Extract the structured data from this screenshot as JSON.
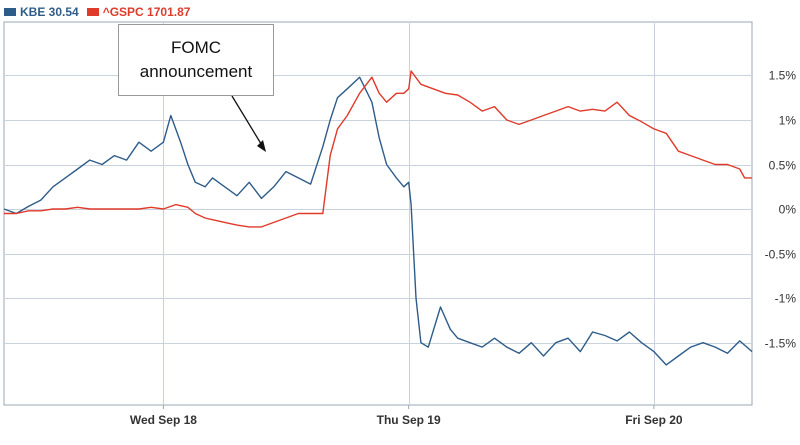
{
  "legend": {
    "kbe_label": "KBE 30.54",
    "gspc_label": "^GSPC 1701.87"
  },
  "annotation": {
    "line1": "FOMC",
    "line2": "announcement"
  },
  "colors": {
    "kbe": "#2e5c8a",
    "gspc": "#e03a2a",
    "grid": "#c8d3de",
    "axis": "#9aa7b4"
  },
  "chart_data": {
    "type": "line",
    "title": "",
    "xlabel": "",
    "ylabel": "",
    "grid": true,
    "legend_position": "top-left",
    "y_ticks": [
      {
        "value": 1.5,
        "label": "1.5%"
      },
      {
        "value": 1.0,
        "label": "1%"
      },
      {
        "value": 0.5,
        "label": "0.5%"
      },
      {
        "value": 0.0,
        "label": "0%"
      },
      {
        "value": -0.5,
        "label": "-0.5%"
      },
      {
        "value": -1.0,
        "label": "-1%"
      },
      {
        "value": -1.5,
        "label": "-1.5%"
      }
    ],
    "ylim": [
      -2.2,
      2.1
    ],
    "xlim": [
      0,
      3.05
    ],
    "x_ticks": [
      {
        "value": 0.65,
        "label": "Wed Sep 18"
      },
      {
        "value": 1.65,
        "label": "Thu Sep 19"
      },
      {
        "value": 2.65,
        "label": "Fri Sep 20"
      }
    ],
    "x_grid": [
      0.65,
      1.65,
      2.65
    ],
    "series": [
      {
        "name": "KBE 30.54",
        "color": "#2e5c8a",
        "x": [
          0.0,
          0.05,
          0.1,
          0.15,
          0.2,
          0.25,
          0.3,
          0.35,
          0.4,
          0.45,
          0.5,
          0.55,
          0.6,
          0.65,
          0.68,
          0.72,
          0.75,
          0.78,
          0.82,
          0.85,
          0.9,
          0.95,
          1.0,
          1.05,
          1.1,
          1.15,
          1.2,
          1.25,
          1.3,
          1.33,
          1.36,
          1.4,
          1.45,
          1.5,
          1.53,
          1.56,
          1.6,
          1.63,
          1.65,
          1.66,
          1.68,
          1.7,
          1.73,
          1.78,
          1.82,
          1.85,
          1.9,
          1.95,
          2.0,
          2.05,
          2.1,
          2.15,
          2.2,
          2.25,
          2.3,
          2.35,
          2.4,
          2.45,
          2.5,
          2.55,
          2.6,
          2.65,
          2.7,
          2.75,
          2.8,
          2.85,
          2.9,
          2.95,
          3.0,
          3.05
        ],
        "y": [
          0.0,
          -0.05,
          0.03,
          0.1,
          0.25,
          0.35,
          0.45,
          0.55,
          0.5,
          0.6,
          0.55,
          0.75,
          0.65,
          0.75,
          1.05,
          0.75,
          0.5,
          0.3,
          0.25,
          0.35,
          0.25,
          0.15,
          0.3,
          0.12,
          0.25,
          0.42,
          0.35,
          0.28,
          0.7,
          1.0,
          1.25,
          1.35,
          1.48,
          1.2,
          0.8,
          0.5,
          0.35,
          0.25,
          0.3,
          0.05,
          -1.0,
          -1.5,
          -1.55,
          -1.1,
          -1.35,
          -1.45,
          -1.5,
          -1.55,
          -1.45,
          -1.55,
          -1.62,
          -1.5,
          -1.65,
          -1.5,
          -1.45,
          -1.6,
          -1.38,
          -1.42,
          -1.48,
          -1.38,
          -1.5,
          -1.6,
          -1.75,
          -1.65,
          -1.55,
          -1.5,
          -1.55,
          -1.62,
          -1.48,
          -1.6
        ]
      },
      {
        "name": "^GSPC 1701.87",
        "color": "#e03a2a",
        "x": [
          0.0,
          0.05,
          0.1,
          0.15,
          0.2,
          0.25,
          0.3,
          0.35,
          0.4,
          0.45,
          0.5,
          0.55,
          0.6,
          0.65,
          0.7,
          0.75,
          0.78,
          0.82,
          0.85,
          0.9,
          0.95,
          1.0,
          1.05,
          1.1,
          1.15,
          1.2,
          1.25,
          1.3,
          1.33,
          1.36,
          1.4,
          1.45,
          1.5,
          1.53,
          1.56,
          1.6,
          1.63,
          1.65,
          1.66,
          1.7,
          1.75,
          1.8,
          1.85,
          1.9,
          1.95,
          2.0,
          2.05,
          2.1,
          2.15,
          2.2,
          2.25,
          2.3,
          2.35,
          2.4,
          2.45,
          2.5,
          2.55,
          2.6,
          2.65,
          2.7,
          2.75,
          2.8,
          2.85,
          2.9,
          2.95,
          3.0,
          3.02,
          3.05
        ],
        "y": [
          -0.05,
          -0.05,
          -0.02,
          -0.02,
          0.0,
          0.0,
          0.02,
          0.0,
          0.0,
          0.0,
          0.0,
          0.0,
          0.02,
          0.0,
          0.05,
          0.02,
          -0.05,
          -0.1,
          -0.12,
          -0.15,
          -0.18,
          -0.2,
          -0.2,
          -0.15,
          -0.1,
          -0.05,
          -0.05,
          -0.05,
          0.6,
          0.9,
          1.05,
          1.3,
          1.48,
          1.3,
          1.2,
          1.3,
          1.3,
          1.35,
          1.55,
          1.4,
          1.35,
          1.3,
          1.28,
          1.2,
          1.1,
          1.15,
          1.0,
          0.95,
          1.0,
          1.05,
          1.1,
          1.15,
          1.1,
          1.12,
          1.1,
          1.2,
          1.05,
          0.98,
          0.9,
          0.85,
          0.65,
          0.6,
          0.55,
          0.5,
          0.5,
          0.45,
          0.35,
          0.35
        ]
      }
    ]
  }
}
